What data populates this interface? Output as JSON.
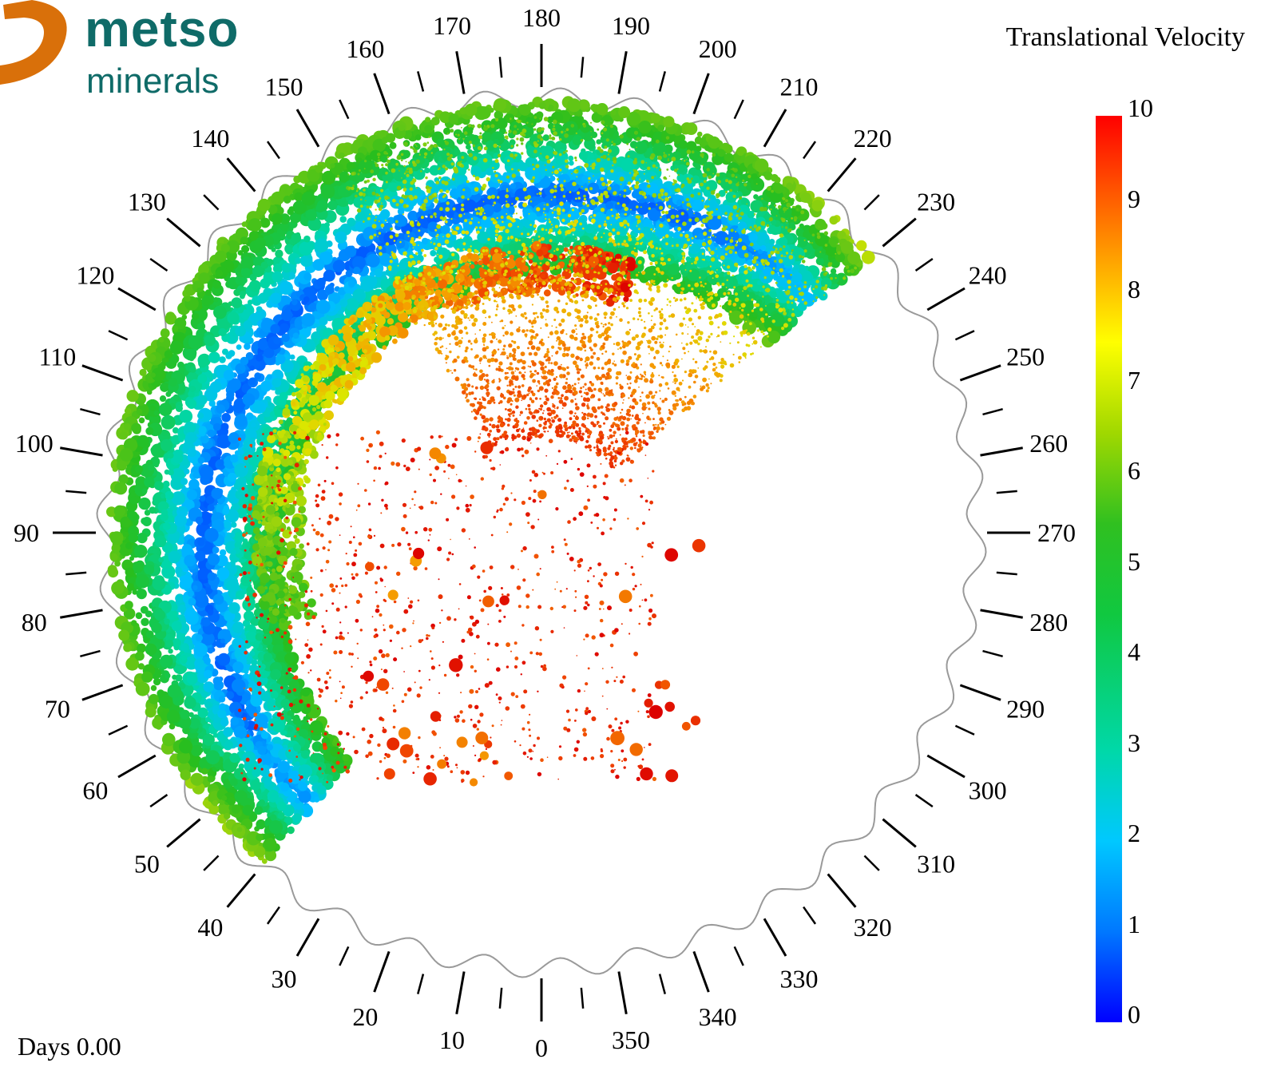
{
  "logo": {
    "wordmark": "metso",
    "subtext": "minerals",
    "colors": {
      "orange": "#d9700a",
      "teal": "#0f6b68"
    }
  },
  "legend": {
    "title": "Translational Velocity",
    "ticks": [
      "0",
      "1",
      "2",
      "3",
      "4",
      "5",
      "6",
      "7",
      "8",
      "9",
      "10"
    ],
    "scale_min": 0,
    "scale_max": 10,
    "gradient_colors": [
      "#0000ff",
      "#00c8ff",
      "#10c840",
      "#ffff00",
      "#ff0000"
    ]
  },
  "footer": {
    "days_label": "Days 0.00"
  },
  "dial": {
    "angle_labels": [
      "0",
      "10",
      "20",
      "30",
      "40",
      "50",
      "60",
      "70",
      "80",
      "90",
      "100",
      "110",
      "120",
      "130",
      "140",
      "150",
      "160",
      "170",
      "180",
      "190",
      "200",
      "210",
      "220",
      "230",
      "240",
      "250",
      "260",
      "270",
      "280",
      "290",
      "300",
      "310",
      "320",
      "330",
      "340",
      "350"
    ]
  }
}
